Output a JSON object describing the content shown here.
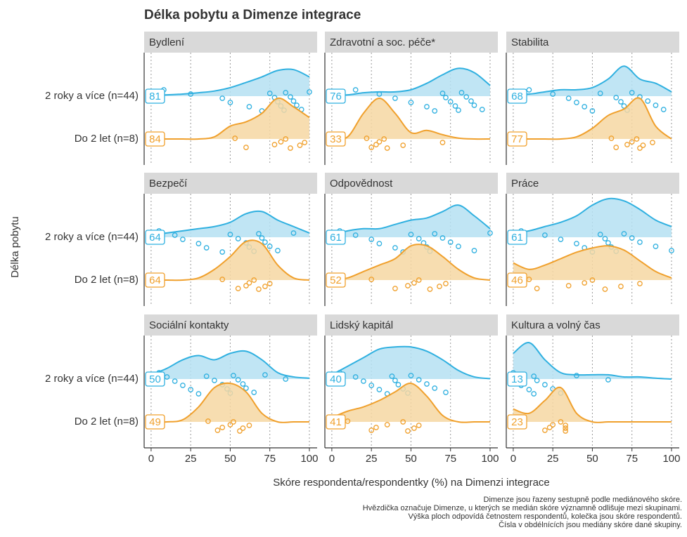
{
  "chart_data": {
    "type": "ridgeline",
    "title": "Délka pobytu a Dimenze integrace",
    "x_label": "Skóre respondenta/respondentky (%) na Dimenzi integrace",
    "y_label": "Délka pobytu",
    "categories": [
      "2 roky a více (n=44)",
      "Do 2 let (n=8)"
    ],
    "colors": [
      "#2fb0e0",
      "#f0a02c"
    ],
    "fill_colors": [
      "#b5e0f2",
      "#f6d7a2"
    ],
    "xlim": [
      -4.4,
      104.9
    ],
    "xticks": [
      0,
      25,
      50,
      75,
      100
    ],
    "grid": true,
    "density_x": [
      0,
      10,
      20,
      30,
      40,
      50,
      60,
      70,
      80,
      90,
      100
    ],
    "facets": [
      {
        "name": "Bydlení",
        "medians": [
          81,
          84
        ],
        "density": [
          [
            0.02,
            0.03,
            0.05,
            0.08,
            0.12,
            0.2,
            0.32,
            0.45,
            0.6,
            0.62,
            0.45
          ],
          [
            0,
            0,
            0,
            0,
            0.05,
            0.3,
            0.4,
            0.6,
            0.95,
            0.75,
            0.5
          ]
        ],
        "points": [
          [
            8,
            25,
            45,
            50,
            62,
            70,
            75,
            78,
            80,
            82,
            84,
            85,
            88,
            90,
            92,
            95,
            100
          ],
          [
            53,
            60,
            78,
            82,
            85,
            88,
            94,
            97
          ]
        ]
      },
      {
        "name": "Zdravotní a soc. péče*",
        "medians": [
          76,
          33
        ],
        "density": [
          [
            0.02,
            0.03,
            0.08,
            0.1,
            0.1,
            0.15,
            0.3,
            0.5,
            0.65,
            0.55,
            0.25
          ],
          [
            0,
            0.05,
            0.6,
            0.95,
            0.6,
            0.15,
            0.2,
            0.1,
            0.02,
            0,
            0
          ]
        ],
        "points": [
          [
            15,
            30,
            40,
            50,
            60,
            65,
            70,
            72,
            75,
            78,
            80,
            82,
            85,
            88,
            90,
            95
          ],
          [
            22,
            25,
            28,
            30,
            33,
            35,
            45,
            70
          ]
        ]
      },
      {
        "name": "Stabilita",
        "medians": [
          68,
          77
        ],
        "density": [
          [
            0.05,
            0.05,
            0.1,
            0.15,
            0.15,
            0.2,
            0.4,
            0.7,
            0.4,
            0.3,
            0.1
          ],
          [
            0,
            0,
            0,
            0,
            0.05,
            0.25,
            0.55,
            0.7,
            0.95,
            0.3,
            0
          ]
        ],
        "points": [
          [
            10,
            25,
            35,
            40,
            45,
            50,
            55,
            65,
            68,
            70,
            72,
            75,
            80,
            85,
            90,
            95
          ],
          [
            62,
            65,
            72,
            75,
            78,
            80,
            82,
            88
          ]
        ]
      },
      {
        "name": "Bezpečí",
        "medians": [
          64,
          64
        ],
        "density": [
          [
            0.05,
            0.1,
            0.15,
            0.2,
            0.25,
            0.35,
            0.55,
            0.6,
            0.4,
            0.25,
            0.1
          ],
          [
            0,
            0,
            0,
            0.05,
            0.25,
            0.55,
            0.9,
            0.85,
            0.35,
            0.05,
            0
          ]
        ],
        "points": [
          [
            5,
            15,
            20,
            30,
            35,
            45,
            50,
            55,
            60,
            62,
            65,
            68,
            70,
            72,
            75,
            80,
            90
          ],
          [
            45,
            55,
            60,
            62,
            65,
            68,
            72,
            75
          ]
        ]
      },
      {
        "name": "Odpovědnost",
        "medians": [
          61,
          52
        ],
        "density": [
          [
            0.05,
            0.15,
            0.2,
            0.2,
            0.3,
            0.4,
            0.45,
            0.6,
            0.75,
            0.5,
            0.2
          ],
          [
            0,
            0.05,
            0.2,
            0.35,
            0.5,
            0.8,
            0.8,
            0.55,
            0.25,
            0.05,
            0
          ]
        ],
        "points": [
          [
            5,
            15,
            25,
            30,
            40,
            45,
            50,
            55,
            58,
            60,
            62,
            65,
            70,
            75,
            80,
            90,
            100
          ],
          [
            25,
            40,
            48,
            52,
            55,
            62,
            68,
            72
          ]
        ]
      },
      {
        "name": "Práce",
        "medians": [
          61,
          46
        ],
        "density": [
          [
            0.1,
            0.15,
            0.25,
            0.35,
            0.5,
            0.75,
            0.9,
            0.85,
            0.65,
            0.4,
            0.25
          ],
          [
            0.4,
            0.25,
            0.35,
            0.5,
            0.65,
            0.75,
            0.8,
            0.7,
            0.45,
            0.2,
            0.05
          ]
        ],
        "points": [
          [
            5,
            20,
            30,
            40,
            45,
            50,
            55,
            58,
            60,
            62,
            65,
            70,
            75,
            80,
            90,
            100
          ],
          [
            10,
            15,
            35,
            45,
            50,
            58,
            68,
            80
          ]
        ]
      },
      {
        "name": "Sociální kontakty",
        "medians": [
          50,
          49
        ],
        "density": [
          [
            0.1,
            0.25,
            0.45,
            0.55,
            0.45,
            0.6,
            0.65,
            0.45,
            0.15,
            0.05,
            0.02
          ],
          [
            0,
            0,
            0.05,
            0.35,
            0.8,
            0.9,
            0.7,
            0.2,
            0,
            0,
            0
          ]
        ],
        "points": [
          [
            5,
            10,
            15,
            20,
            25,
            30,
            35,
            40,
            45,
            48,
            50,
            52,
            55,
            58,
            60,
            65,
            72,
            85
          ],
          [
            36,
            42,
            45,
            50,
            52,
            56,
            58,
            62
          ]
        ]
      },
      {
        "name": "Lidský kapitál",
        "medians": [
          40,
          41
        ],
        "density": [
          [
            0.1,
            0.3,
            0.5,
            0.7,
            0.75,
            0.75,
            0.65,
            0.45,
            0.2,
            0.05,
            0.01
          ],
          [
            0.1,
            0.25,
            0.35,
            0.5,
            0.7,
            0.9,
            0.6,
            0.15,
            0,
            0,
            0
          ]
        ],
        "points": [
          [
            5,
            15,
            20,
            25,
            30,
            35,
            38,
            40,
            42,
            45,
            48,
            50,
            55,
            60,
            65,
            72
          ],
          [
            10,
            25,
            28,
            35,
            45,
            48,
            52,
            55
          ]
        ]
      },
      {
        "name": "Kultura a volný čas",
        "medians": [
          13,
          23
        ],
        "density": [
          [
            0.6,
            0.85,
            0.45,
            0.15,
            0.1,
            0.1,
            0.1,
            0.05,
            0.05,
            0.02,
            0
          ],
          [
            0.3,
            0.2,
            0.5,
            0.8,
            0.2,
            0,
            0,
            0,
            0,
            0,
            0
          ]
        ],
        "points": [
          [
            0,
            0,
            0,
            5,
            10,
            13,
            13,
            15,
            20,
            25,
            30,
            40,
            60
          ],
          [
            0,
            20,
            23,
            25,
            30,
            33,
            33,
            33
          ]
        ]
      }
    ],
    "notes": [
      "Dimenze jsou řazeny sestupně podle mediánového skóre.",
      "Hvězdička označuje Dimenze, u kterých se medián skóre významně odlišuje mezi skupinami.",
      "Výška ploch odpovídá četnostem respondentů, kolečka jsou skóre respondentů.",
      "Čísla v obdélnících jsou mediány skóre dané skupiny."
    ]
  }
}
